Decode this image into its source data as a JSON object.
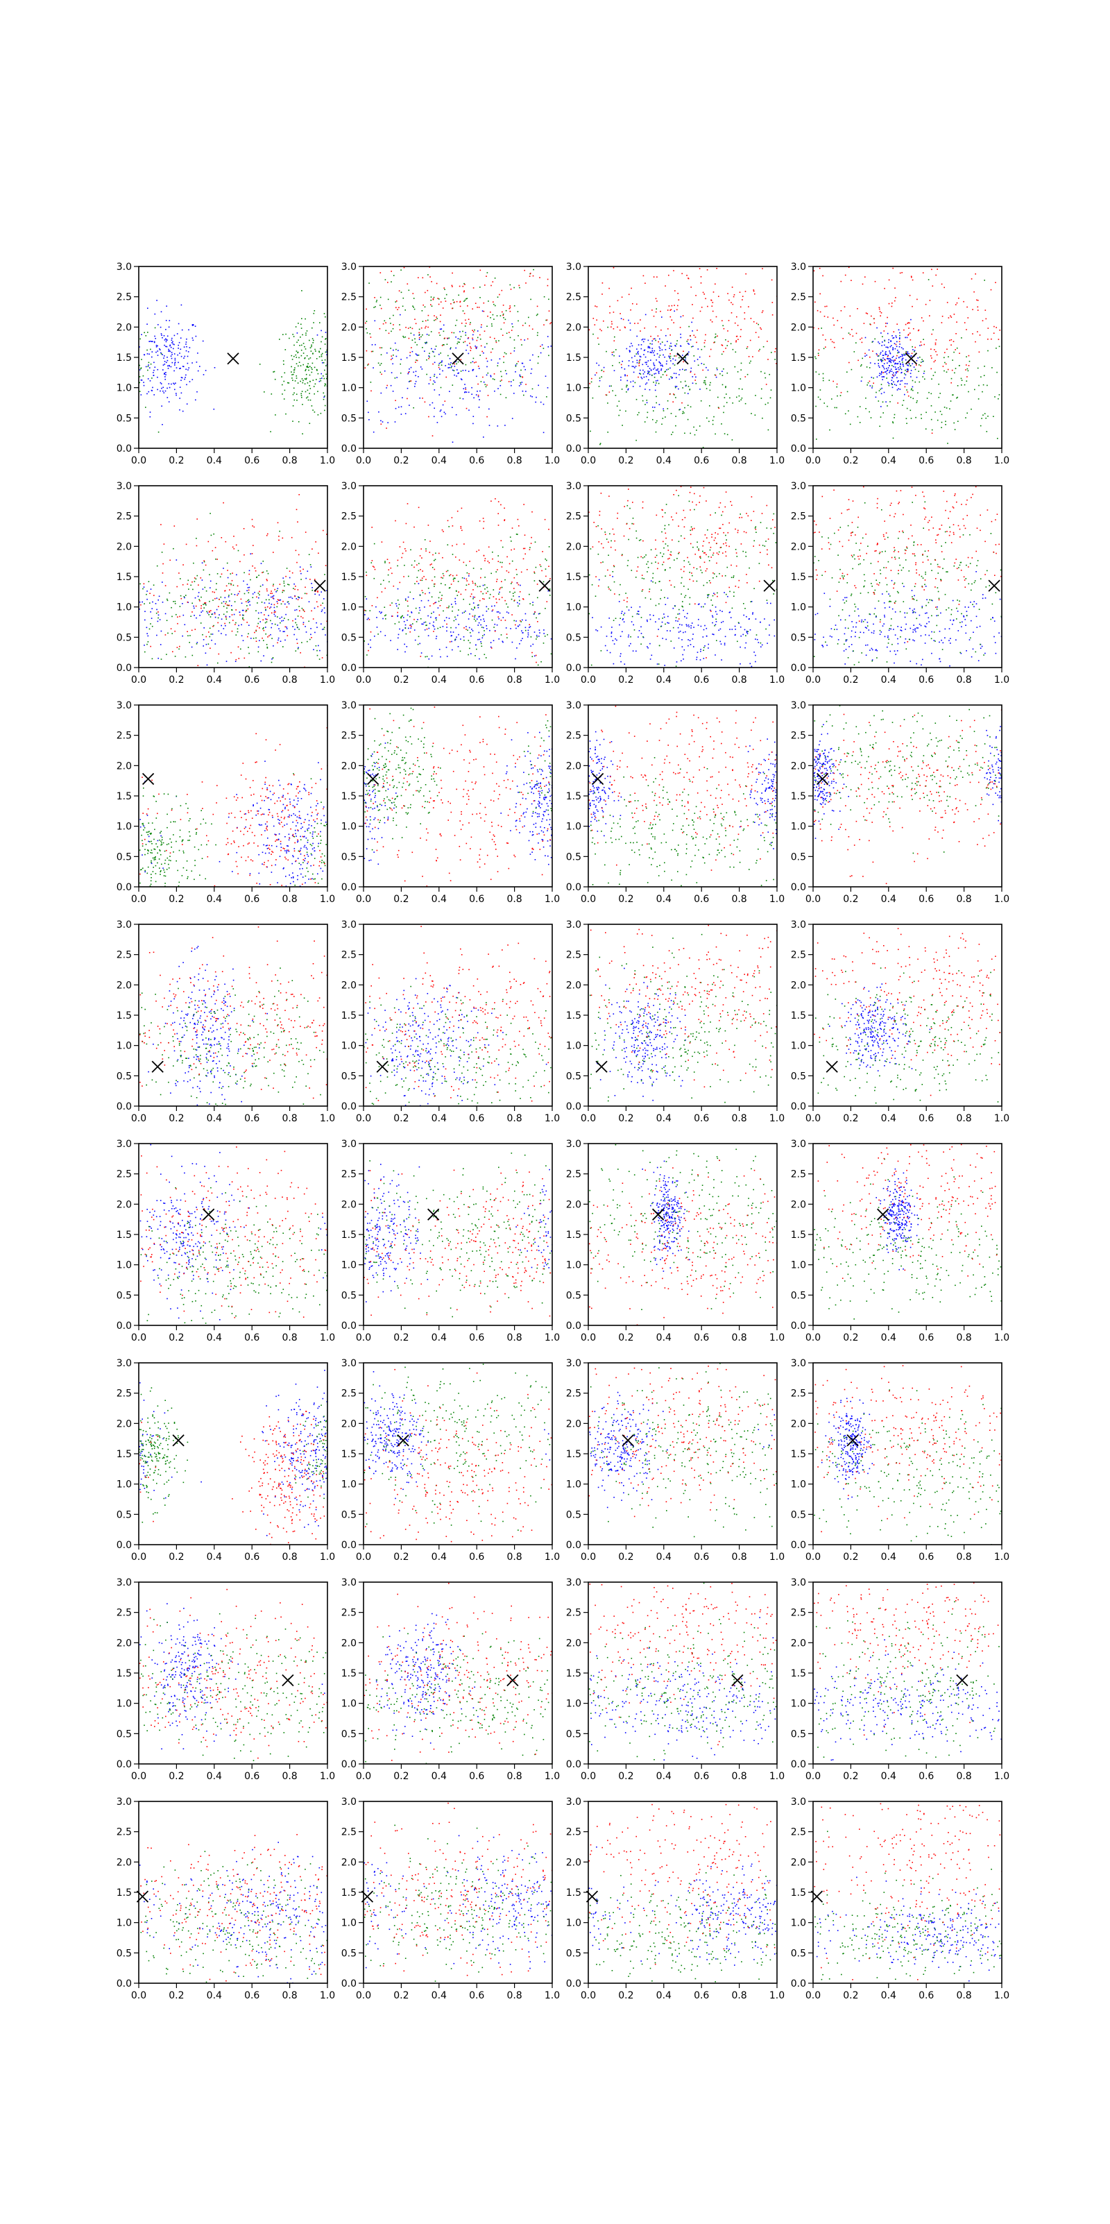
{
  "chart_data": {
    "type": "scatter",
    "layout": {
      "rows": 8,
      "cols": 4
    },
    "xlim": [
      0,
      1
    ],
    "ylim": [
      0,
      3
    ],
    "xticks": [
      0.0,
      0.2,
      0.4,
      0.6,
      0.8,
      1.0
    ],
    "yticks": [
      0.0,
      0.5,
      1.0,
      1.5,
      2.0,
      2.5,
      3.0
    ],
    "grid": false,
    "series_colors": [
      "#0000ff",
      "#008000",
      "#ff0000"
    ],
    "marker_color": "#000000",
    "panels": [
      {
        "row": 0,
        "col": 0,
        "marker": [
          0.5,
          1.48
        ],
        "points_per_series": 230,
        "clusters": [
          [
            0.15,
            1.45,
            0.09,
            0.4
          ],
          [
            0.9,
            1.3,
            0.09,
            0.4
          ]
        ]
      },
      {
        "row": 0,
        "col": 1,
        "marker": [
          0.5,
          1.48
        ],
        "points_per_series": 230,
        "clusters": [
          [
            0.45,
            1.2,
            0.3,
            0.45
          ],
          [
            0.4,
            1.9,
            0.3,
            0.55
          ],
          [
            0.5,
            2.1,
            0.3,
            0.6
          ]
        ]
      },
      {
        "row": 0,
        "col": 2,
        "marker": [
          0.5,
          1.48
        ],
        "points_per_series": 230,
        "clusters": [
          [
            0.35,
            1.4,
            0.12,
            0.3
          ],
          [
            0.5,
            1.0,
            0.3,
            0.5
          ],
          [
            0.6,
            2.2,
            0.3,
            0.6
          ]
        ]
      },
      {
        "row": 0,
        "col": 3,
        "marker": [
          0.52,
          1.48
        ],
        "points_per_series": 230,
        "clusters": [
          [
            0.42,
            1.45,
            0.06,
            0.25
          ],
          [
            0.5,
            1.0,
            0.3,
            0.5
          ],
          [
            0.6,
            2.1,
            0.3,
            0.6
          ]
        ]
      },
      {
        "row": 1,
        "col": 0,
        "marker": [
          0.96,
          1.35
        ],
        "points_per_series": 230,
        "clusters": [
          [
            0.7,
            0.9,
            0.25,
            0.4
          ],
          [
            0.5,
            0.9,
            0.3,
            0.5
          ],
          [
            0.6,
            1.2,
            0.3,
            0.6
          ]
        ]
      },
      {
        "row": 1,
        "col": 1,
        "marker": [
          0.96,
          1.35
        ],
        "points_per_series": 230,
        "clusters": [
          [
            0.5,
            0.7,
            0.3,
            0.3
          ],
          [
            0.6,
            1.1,
            0.3,
            0.5
          ],
          [
            0.7,
            1.6,
            0.3,
            0.6
          ]
        ]
      },
      {
        "row": 1,
        "col": 2,
        "marker": [
          0.96,
          1.35
        ],
        "points_per_series": 230,
        "clusters": [
          [
            0.5,
            0.6,
            0.3,
            0.3
          ],
          [
            0.5,
            1.5,
            0.3,
            0.6
          ],
          [
            0.6,
            2.2,
            0.3,
            0.6
          ]
        ]
      },
      {
        "row": 1,
        "col": 3,
        "marker": [
          0.96,
          1.35
        ],
        "points_per_series": 230,
        "clusters": [
          [
            0.5,
            0.6,
            0.3,
            0.3
          ],
          [
            0.5,
            1.3,
            0.3,
            0.6
          ],
          [
            0.6,
            2.2,
            0.3,
            0.6
          ]
        ]
      },
      {
        "row": 2,
        "col": 0,
        "marker": [
          0.05,
          1.78
        ],
        "points_per_series": 230,
        "clusters": [
          [
            0.8,
            0.9,
            0.12,
            0.5
          ],
          [
            0.1,
            0.6,
            0.12,
            0.4
          ],
          [
            0.7,
            1.0,
            0.2,
            0.6
          ]
        ]
      },
      {
        "row": 2,
        "col": 1,
        "marker": [
          0.05,
          1.78
        ],
        "points_per_series": 230,
        "clusters": [
          [
            0.95,
            1.4,
            0.08,
            0.45
          ],
          [
            0.15,
            1.9,
            0.12,
            0.5
          ],
          [
            0.6,
            1.4,
            0.3,
            0.7
          ]
        ]
      },
      {
        "row": 2,
        "col": 2,
        "marker": [
          0.05,
          1.78
        ],
        "points_per_series": 230,
        "clusters": [
          [
            0.0,
            1.6,
            0.06,
            0.4
          ],
          [
            0.5,
            0.9,
            0.3,
            0.5
          ],
          [
            0.6,
            1.8,
            0.3,
            0.6
          ]
        ]
      },
      {
        "row": 2,
        "col": 3,
        "marker": [
          0.05,
          1.78
        ],
        "points_per_series": 230,
        "clusters": [
          [
            0.02,
            1.85,
            0.05,
            0.35
          ],
          [
            0.5,
            2.1,
            0.3,
            0.5
          ],
          [
            0.6,
            1.6,
            0.3,
            0.6
          ]
        ]
      },
      {
        "row": 3,
        "col": 0,
        "marker": [
          0.1,
          0.65
        ],
        "points_per_series": 230,
        "clusters": [
          [
            0.35,
            1.2,
            0.11,
            0.55
          ],
          [
            0.5,
            0.9,
            0.3,
            0.5
          ],
          [
            0.6,
            1.4,
            0.3,
            0.6
          ]
        ]
      },
      {
        "row": 3,
        "col": 1,
        "marker": [
          0.1,
          0.65
        ],
        "points_per_series": 230,
        "clusters": [
          [
            0.35,
            1.0,
            0.15,
            0.45
          ],
          [
            0.5,
            0.8,
            0.3,
            0.5
          ],
          [
            0.6,
            1.4,
            0.3,
            0.6
          ]
        ]
      },
      {
        "row": 3,
        "col": 2,
        "marker": [
          0.07,
          0.65
        ],
        "points_per_series": 230,
        "clusters": [
          [
            0.3,
            1.15,
            0.1,
            0.4
          ],
          [
            0.5,
            1.2,
            0.3,
            0.6
          ],
          [
            0.6,
            1.8,
            0.3,
            0.6
          ]
        ]
      },
      {
        "row": 3,
        "col": 3,
        "marker": [
          0.1,
          0.65
        ],
        "points_per_series": 230,
        "clusters": [
          [
            0.33,
            1.25,
            0.08,
            0.3
          ],
          [
            0.5,
            1.0,
            0.3,
            0.5
          ],
          [
            0.6,
            1.9,
            0.3,
            0.6
          ]
        ]
      },
      {
        "row": 4,
        "col": 0,
        "marker": [
          0.37,
          1.83
        ],
        "points_per_series": 230,
        "clusters": [
          [
            0.25,
            1.5,
            0.12,
            0.5
          ],
          [
            0.5,
            1.0,
            0.3,
            0.5
          ],
          [
            0.4,
            1.5,
            0.3,
            0.6
          ]
        ]
      },
      {
        "row": 4,
        "col": 1,
        "marker": [
          0.37,
          1.83
        ],
        "points_per_series": 230,
        "clusters": [
          [
            0.1,
            1.55,
            0.1,
            0.45
          ],
          [
            0.6,
            1.4,
            0.3,
            0.6
          ],
          [
            0.7,
            1.3,
            0.25,
            0.6
          ]
        ]
      },
      {
        "row": 4,
        "col": 2,
        "marker": [
          0.37,
          1.83
        ],
        "points_per_series": 230,
        "clusters": [
          [
            0.42,
            1.85,
            0.04,
            0.35
          ],
          [
            0.6,
            1.8,
            0.3,
            0.6
          ],
          [
            0.5,
            1.3,
            0.3,
            0.6
          ]
        ]
      },
      {
        "row": 4,
        "col": 3,
        "marker": [
          0.37,
          1.83
        ],
        "points_per_series": 230,
        "clusters": [
          [
            0.45,
            1.85,
            0.04,
            0.3
          ],
          [
            0.5,
            1.1,
            0.3,
            0.5
          ],
          [
            0.6,
            2.2,
            0.3,
            0.6
          ]
        ]
      },
      {
        "row": 5,
        "col": 0,
        "marker": [
          0.21,
          1.72
        ],
        "points_per_series": 230,
        "clusters": [
          [
            0.9,
            1.5,
            0.1,
            0.5
          ],
          [
            0.05,
            1.5,
            0.08,
            0.4
          ],
          [
            0.8,
            1.1,
            0.12,
            0.5
          ]
        ]
      },
      {
        "row": 5,
        "col": 1,
        "marker": [
          0.21,
          1.72
        ],
        "points_per_series": 230,
        "clusters": [
          [
            0.15,
            1.8,
            0.08,
            0.35
          ],
          [
            0.5,
            1.8,
            0.3,
            0.6
          ],
          [
            0.5,
            1.2,
            0.3,
            0.6
          ]
        ]
      },
      {
        "row": 5,
        "col": 2,
        "marker": [
          0.21,
          1.72
        ],
        "points_per_series": 230,
        "clusters": [
          [
            0.17,
            1.6,
            0.09,
            0.35
          ],
          [
            0.6,
            1.5,
            0.3,
            0.6
          ],
          [
            0.6,
            1.9,
            0.3,
            0.6
          ]
        ]
      },
      {
        "row": 5,
        "col": 3,
        "marker": [
          0.21,
          1.72
        ],
        "points_per_series": 230,
        "clusters": [
          [
            0.2,
            1.65,
            0.05,
            0.3
          ],
          [
            0.6,
            1.2,
            0.3,
            0.6
          ],
          [
            0.6,
            1.9,
            0.3,
            0.6
          ]
        ]
      },
      {
        "row": 6,
        "col": 0,
        "marker": [
          0.79,
          1.38
        ],
        "points_per_series": 230,
        "clusters": [
          [
            0.25,
            1.5,
            0.1,
            0.45
          ],
          [
            0.5,
            1.2,
            0.3,
            0.5
          ],
          [
            0.5,
            1.4,
            0.3,
            0.6
          ]
        ]
      },
      {
        "row": 6,
        "col": 1,
        "marker": [
          0.79,
          1.38
        ],
        "points_per_series": 230,
        "clusters": [
          [
            0.3,
            1.4,
            0.1,
            0.45
          ],
          [
            0.5,
            1.1,
            0.3,
            0.5
          ],
          [
            0.6,
            1.5,
            0.3,
            0.6
          ]
        ]
      },
      {
        "row": 6,
        "col": 2,
        "marker": [
          0.79,
          1.38
        ],
        "points_per_series": 230,
        "clusters": [
          [
            0.5,
            1.0,
            0.3,
            0.4
          ],
          [
            0.5,
            1.2,
            0.3,
            0.5
          ],
          [
            0.5,
            2.2,
            0.3,
            0.6
          ]
        ]
      },
      {
        "row": 6,
        "col": 3,
        "marker": [
          0.79,
          1.38
        ],
        "points_per_series": 230,
        "clusters": [
          [
            0.5,
            0.9,
            0.3,
            0.35
          ],
          [
            0.5,
            1.3,
            0.3,
            0.5
          ],
          [
            0.5,
            2.3,
            0.3,
            0.6
          ]
        ]
      },
      {
        "row": 7,
        "col": 0,
        "marker": [
          0.02,
          1.43
        ],
        "points_per_series": 230,
        "clusters": [
          [
            0.7,
            1.1,
            0.2,
            0.45
          ],
          [
            0.6,
            1.0,
            0.3,
            0.5
          ],
          [
            0.6,
            1.3,
            0.3,
            0.6
          ]
        ]
      },
      {
        "row": 7,
        "col": 1,
        "marker": [
          0.02,
          1.43
        ],
        "points_per_series": 230,
        "clusters": [
          [
            0.8,
            1.3,
            0.2,
            0.4
          ],
          [
            0.5,
            1.2,
            0.3,
            0.5
          ],
          [
            0.5,
            1.4,
            0.3,
            0.6
          ]
        ]
      },
      {
        "row": 7,
        "col": 2,
        "marker": [
          0.02,
          1.43
        ],
        "points_per_series": 230,
        "clusters": [
          [
            0.8,
            1.1,
            0.2,
            0.35
          ],
          [
            0.5,
            0.8,
            0.3,
            0.4
          ],
          [
            0.6,
            2.0,
            0.3,
            0.7
          ]
        ]
      },
      {
        "row": 7,
        "col": 3,
        "marker": [
          0.02,
          1.43
        ],
        "points_per_series": 230,
        "clusters": [
          [
            0.7,
            0.8,
            0.2,
            0.3
          ],
          [
            0.5,
            0.8,
            0.3,
            0.4
          ],
          [
            0.6,
            2.0,
            0.3,
            0.7
          ]
        ]
      }
    ]
  }
}
